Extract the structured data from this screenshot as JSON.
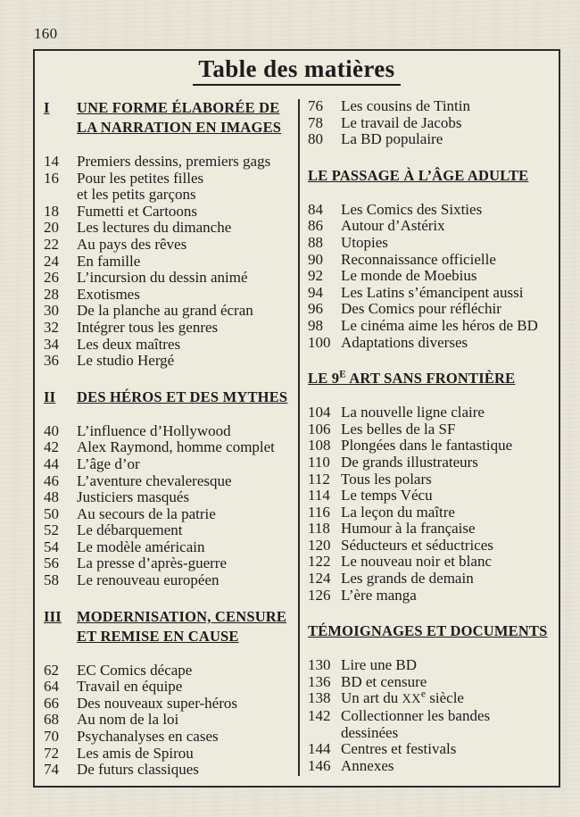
{
  "colors": {
    "paper": "#e8e4d8",
    "paper_inner": "#edeade",
    "ink": "#1c1c1c",
    "rule": "#2b2b2b"
  },
  "page": {
    "folio": "160",
    "title": "Table des matières"
  },
  "columns": [
    {
      "sections": [
        {
          "numeral": "I",
          "heading": [
            "UNE FORME ÉLABORÉE DE",
            "LA NARRATION EN IMAGES"
          ],
          "entries": [
            {
              "page": "14",
              "label": "Premiers dessins, premiers gags"
            },
            {
              "page": "16",
              "label": [
                "Pour les petites filles",
                "et les petits garçons"
              ]
            },
            {
              "page": "18",
              "label": "Fumetti et Cartoons"
            },
            {
              "page": "20",
              "label": "Les lectures du dimanche"
            },
            {
              "page": "22",
              "label": "Au pays des rêves"
            },
            {
              "page": "24",
              "label": "En famille"
            },
            {
              "page": "26",
              "label": "L’incursion du dessin animé"
            },
            {
              "page": "28",
              "label": "Exotismes"
            },
            {
              "page": "30",
              "label": "De la planche au grand écran"
            },
            {
              "page": "32",
              "label": "Intégrer tous les genres"
            },
            {
              "page": "34",
              "label": "Les deux maîtres"
            },
            {
              "page": "36",
              "label": "Le studio Hergé"
            }
          ]
        },
        {
          "numeral": "II",
          "heading": [
            "DES HÉROS ET DES MYTHES"
          ],
          "entries": [
            {
              "page": "40",
              "label": "L’influence d’Hollywood"
            },
            {
              "page": "42",
              "label": "Alex Raymond, homme complet"
            },
            {
              "page": "44",
              "label": "L’âge d’or"
            },
            {
              "page": "46",
              "label": "L’aventure chevaleresque"
            },
            {
              "page": "48",
              "label": "Justiciers masqués"
            },
            {
              "page": "50",
              "label": "Au secours de la patrie"
            },
            {
              "page": "52",
              "label": "Le débarquement"
            },
            {
              "page": "54",
              "label": "Le modèle américain"
            },
            {
              "page": "56",
              "label": "La presse d’après-guerre"
            },
            {
              "page": "58",
              "label": "Le renouveau européen"
            }
          ]
        },
        {
          "numeral": "III",
          "heading": [
            "MODERNISATION, CENSURE",
            "ET REMISE EN CAUSE"
          ],
          "entries": [
            {
              "page": "62",
              "label": "EC Comics décape"
            },
            {
              "page": "64",
              "label": "Travail en équipe"
            },
            {
              "page": "66",
              "label": "Des nouveaux super-héros"
            },
            {
              "page": "68",
              "label": "Au nom de la loi"
            },
            {
              "page": "70",
              "label": "Psychanalyses en cases"
            },
            {
              "page": "72",
              "label": "Les amis de Spirou"
            },
            {
              "page": "74",
              "label": "De futurs classiques"
            }
          ]
        }
      ]
    },
    {
      "sections": [
        {
          "entries": [
            {
              "page": "76",
              "label": "Les cousins de Tintin"
            },
            {
              "page": "78",
              "label": "Le travail de Jacobs"
            },
            {
              "page": "80",
              "label": "La BD populaire"
            }
          ]
        },
        {
          "heading": [
            "LE PASSAGE À L’ÂGE ADULTE"
          ],
          "entries": [
            {
              "page": "84",
              "label": "Les Comics des Sixties"
            },
            {
              "page": "86",
              "label": "Autour d’Astérix"
            },
            {
              "page": "88",
              "label": "Utopies"
            },
            {
              "page": "90",
              "label": "Reconnaissance officielle"
            },
            {
              "page": "92",
              "label": "Le monde de Moebius"
            },
            {
              "page": "94",
              "label": "Les Latins s’émancipent aussi"
            },
            {
              "page": "96",
              "label": "Des Comics pour réfléchir"
            },
            {
              "page": "98",
              "label": "Le cinéma aime les héros de BD"
            },
            {
              "page": "100",
              "label": "Adaptations diverses"
            }
          ]
        },
        {
          "heading": [
            [
              {
                "t": "LE 9"
              },
              {
                "t": "E",
                "style": "sup"
              },
              {
                "t": " ART SANS FRONTIÈRE"
              }
            ]
          ],
          "entries": [
            {
              "page": "104",
              "label": "La nouvelle ligne claire"
            },
            {
              "page": "106",
              "label": "Les belles de la SF"
            },
            {
              "page": "108",
              "label": "Plongées dans le fantastique"
            },
            {
              "page": "110",
              "label": "De grands illustrateurs"
            },
            {
              "page": "112",
              "label": "Tous les polars"
            },
            {
              "page": "114",
              "label": "Le temps Vécu"
            },
            {
              "page": "116",
              "label": "La leçon du maître"
            },
            {
              "page": "118",
              "label": "Humour à la française"
            },
            {
              "page": "120",
              "label": "Séducteurs et séductrices"
            },
            {
              "page": "122",
              "label": "Le nouveau noir et blanc"
            },
            {
              "page": "124",
              "label": "Les grands de demain"
            },
            {
              "page": "126",
              "label": "L’ère manga"
            }
          ]
        },
        {
          "heading": [
            "TÉMOIGNAGES ET DOCUMENTS"
          ],
          "entries": [
            {
              "page": "130",
              "label": "Lire une BD"
            },
            {
              "page": "136",
              "label": "BD et censure"
            },
            {
              "page": "138",
              "label": [
                [
                  {
                    "t": "Un art du "
                  },
                  {
                    "t": "XX",
                    "style": "smallcaps"
                  },
                  {
                    "t": "e",
                    "style": "sup"
                  },
                  {
                    "t": " siècle"
                  }
                ]
              ]
            },
            {
              "page": "142",
              "label": [
                "Collectionner les bandes",
                "dessinées"
              ]
            },
            {
              "page": "144",
              "label": "Centres et festivals"
            },
            {
              "page": "146",
              "label": "Annexes"
            }
          ]
        }
      ]
    }
  ]
}
